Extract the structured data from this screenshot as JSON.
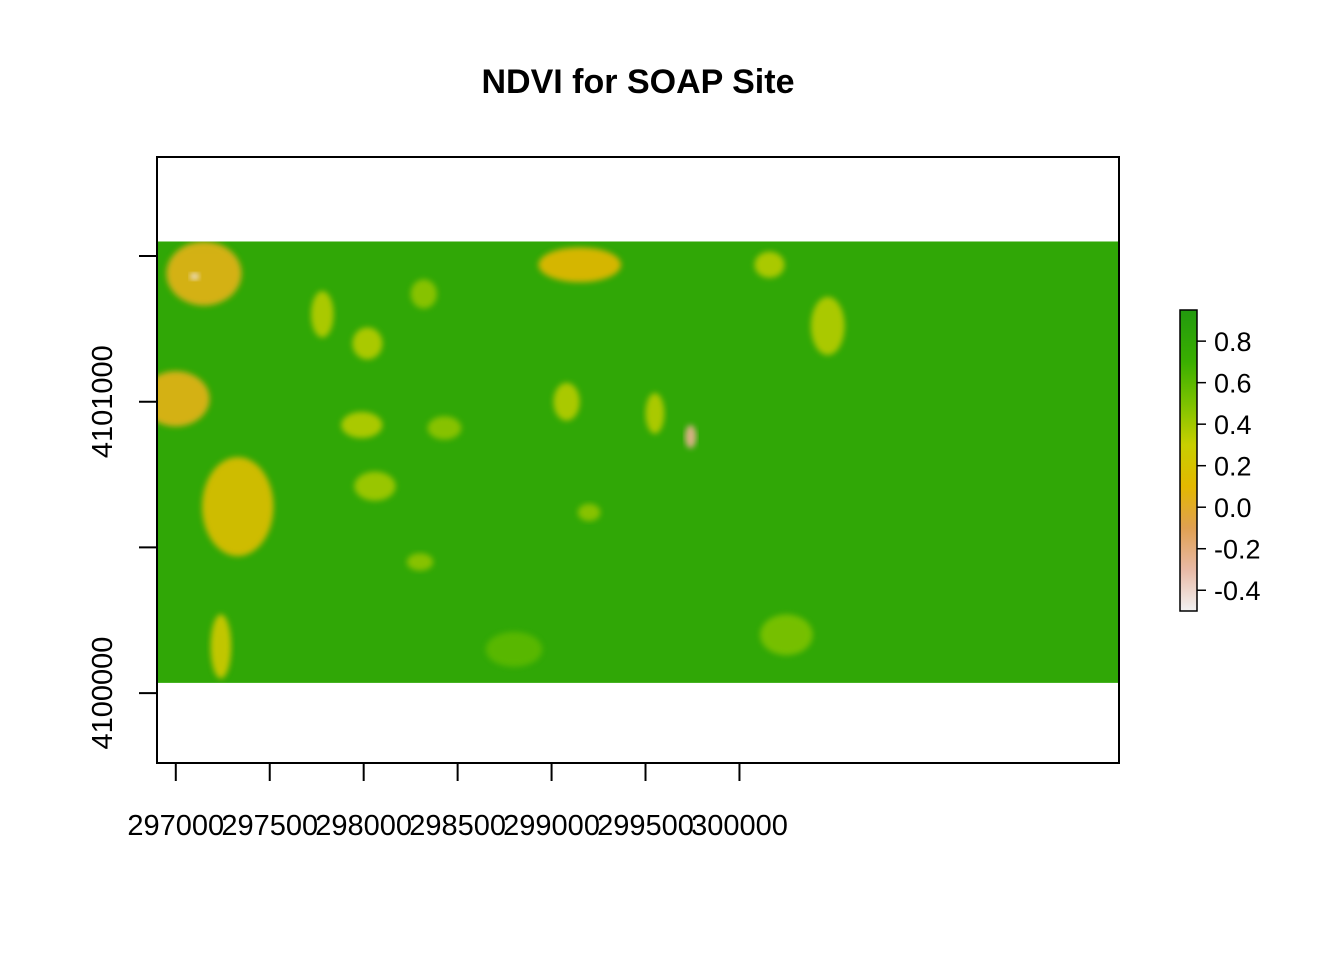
{
  "chart_data": {
    "type": "heatmap",
    "title": "NDVI for SOAP Site",
    "xlabel": "",
    "ylabel": "",
    "xlim": [
      296900,
      302020
    ],
    "ylim": [
      4099760,
      4101840
    ],
    "x_ticks": [
      297000,
      297500,
      298000,
      298500,
      299000,
      299500,
      300000
    ],
    "x_tick_labels": [
      "297000",
      "297500",
      "298000",
      "298500",
      "299000",
      "299500",
      "300000"
    ],
    "y_ticks": [
      4100000,
      4100500,
      4101000,
      4101500
    ],
    "y_tick_labels": [
      "4100000",
      "",
      "4101000",
      ""
    ],
    "raster_extent": {
      "xmin": 296900,
      "xmax": 302020,
      "ymin": 4100035,
      "ymax": 4101550
    },
    "dominant_value": 0.8,
    "legend": {
      "placement": "right",
      "range": [
        -0.5,
        0.95
      ],
      "ticks": [
        0.8,
        0.6,
        0.4,
        0.2,
        0.0,
        -0.2,
        -0.4
      ],
      "tick_labels": [
        "0.8",
        "0.6",
        "0.4",
        "0.2",
        "0.0",
        "-0.2",
        "-0.4"
      ],
      "color_stops": [
        {
          "value": -0.5,
          "color": "#f2f2f2"
        },
        {
          "value": -0.3,
          "color": "#e8b9a5"
        },
        {
          "value": -0.1,
          "color": "#e0a052"
        },
        {
          "value": 0.1,
          "color": "#e3b800"
        },
        {
          "value": 0.3,
          "color": "#c8cf00"
        },
        {
          "value": 0.5,
          "color": "#7cc200"
        },
        {
          "value": 0.7,
          "color": "#3aaf00"
        },
        {
          "value": 0.95,
          "color": "#229a0e"
        }
      ]
    },
    "patches": [
      {
        "x": 297150,
        "y": 4101440,
        "rx": 200,
        "ry": 110,
        "value": 0.05
      },
      {
        "x": 297000,
        "y": 4101010,
        "rx": 180,
        "ry": 95,
        "value": 0.05
      },
      {
        "x": 297330,
        "y": 4100640,
        "rx": 190,
        "ry": 170,
        "value": 0.15
      },
      {
        "x": 297240,
        "y": 4100160,
        "rx": 55,
        "ry": 110,
        "value": 0.25
      },
      {
        "x": 299150,
        "y": 4101470,
        "rx": 220,
        "ry": 60,
        "value": 0.1
      },
      {
        "x": 297780,
        "y": 4101300,
        "rx": 60,
        "ry": 80,
        "value": 0.35
      },
      {
        "x": 298020,
        "y": 4101200,
        "rx": 80,
        "ry": 55,
        "value": 0.35
      },
      {
        "x": 297990,
        "y": 4100920,
        "rx": 110,
        "ry": 45,
        "value": 0.35
      },
      {
        "x": 298320,
        "y": 4101370,
        "rx": 70,
        "ry": 50,
        "value": 0.45
      },
      {
        "x": 298430,
        "y": 4100910,
        "rx": 90,
        "ry": 40,
        "value": 0.45
      },
      {
        "x": 298060,
        "y": 4100710,
        "rx": 110,
        "ry": 50,
        "value": 0.4
      },
      {
        "x": 299080,
        "y": 4101000,
        "rx": 70,
        "ry": 65,
        "value": 0.35
      },
      {
        "x": 299550,
        "y": 4100960,
        "rx": 50,
        "ry": 70,
        "value": 0.35
      },
      {
        "x": 300470,
        "y": 4101260,
        "rx": 90,
        "ry": 100,
        "value": 0.35
      },
      {
        "x": 300160,
        "y": 4101470,
        "rx": 80,
        "ry": 45,
        "value": 0.35
      },
      {
        "x": 299740,
        "y": 4100880,
        "rx": 30,
        "ry": 40,
        "value": -0.25
      },
      {
        "x": 298300,
        "y": 4100450,
        "rx": 70,
        "ry": 30,
        "value": 0.45
      },
      {
        "x": 299200,
        "y": 4100620,
        "rx": 60,
        "ry": 30,
        "value": 0.45
      },
      {
        "x": 300250,
        "y": 4100200,
        "rx": 140,
        "ry": 70,
        "value": 0.5
      },
      {
        "x": 298800,
        "y": 4100150,
        "rx": 150,
        "ry": 60,
        "value": 0.6
      },
      {
        "x": 297100,
        "y": 4101430,
        "rx": 25,
        "ry": 12,
        "value": -0.45
      }
    ]
  }
}
